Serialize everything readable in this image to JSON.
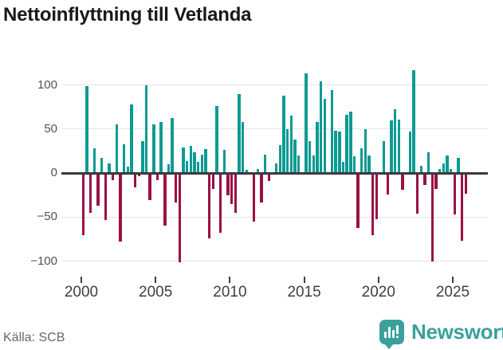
{
  "title": "Nettoinflyttning till Vetlanda",
  "source": "Källa: SCB",
  "branding": {
    "name": "Newsworthy",
    "badge_icon": "bar-chart-exclamation",
    "color": "#3ba09b"
  },
  "colors": {
    "positive": "#0d9a93",
    "negative": "#9b1046",
    "grid": "#e4e4e6",
    "zero_line": "#3a3a3e",
    "background": "#ffffff"
  },
  "chart_data": {
    "type": "bar",
    "title": "Nettoinflyttning till Vetlanda",
    "xlabel": "",
    "ylabel": "",
    "frequency": "quarterly",
    "x_start": "2000-Q1",
    "x_end": "2025-Q4",
    "x_tick_years": [
      2000,
      2005,
      2010,
      2015,
      2020,
      2025
    ],
    "y_ticks": [
      100,
      50,
      0,
      -50,
      -100
    ],
    "y_tick_labels": [
      "100",
      "50",
      "0",
      "−50",
      "−100"
    ],
    "ylim": [
      -110,
      125
    ],
    "grid": true,
    "legend": false,
    "series": [
      {
        "name": "Nettoinflyttning",
        "values": [
          -70,
          99,
          -45,
          28,
          -37,
          17,
          -53,
          11,
          -8,
          55,
          -78,
          33,
          7,
          78,
          -16,
          -3,
          36,
          100,
          -31,
          55,
          -8,
          58,
          -60,
          10,
          63,
          -33,
          -101,
          29,
          14,
          31,
          24,
          13,
          21,
          27,
          -74,
          -18,
          76,
          -68,
          26,
          -25,
          -35,
          -45,
          90,
          58,
          4,
          0,
          -55,
          5,
          -33,
          21,
          -9,
          0,
          11,
          32,
          88,
          50,
          65,
          38,
          20,
          0,
          113,
          36,
          20,
          58,
          104,
          84,
          0,
          94,
          48,
          47,
          13,
          66,
          70,
          19,
          -62,
          28,
          50,
          20,
          -70,
          -52,
          0,
          36,
          -24,
          60,
          73,
          61,
          -19,
          0,
          47,
          117,
          -46,
          8,
          -13,
          24,
          -100,
          -18,
          5,
          11,
          20,
          5,
          -47,
          17,
          -77,
          -23
        ]
      }
    ]
  }
}
